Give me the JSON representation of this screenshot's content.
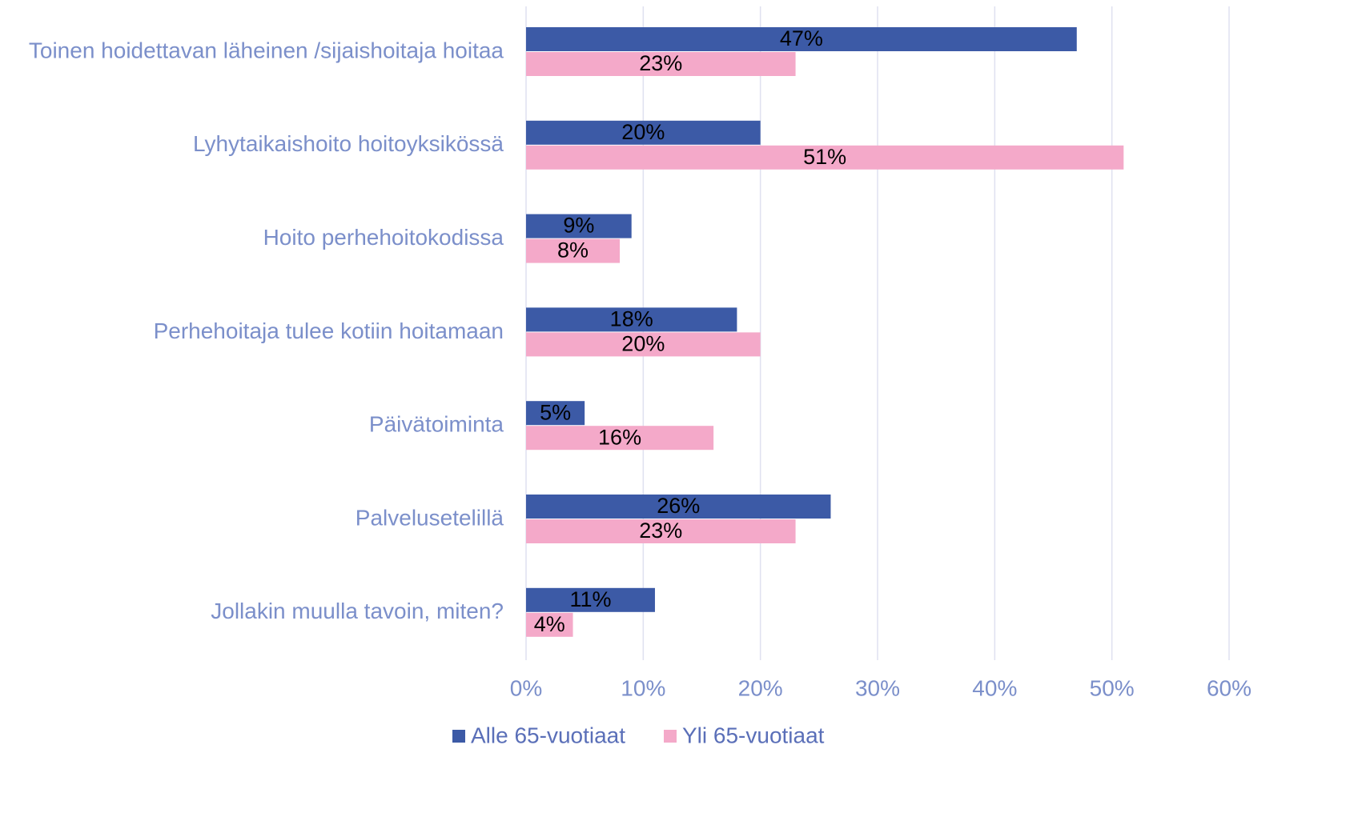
{
  "chart_data": {
    "type": "bar",
    "categories": [
      "Toinen hoidettavan läheinen /sijaishoitaja hoitaa",
      "Lyhytaikaishoito hoitoyksikössä",
      "Hoito perhehoitokodissa",
      "Perhehoitaja tulee kotiin hoitamaan",
      "Päivätoiminta",
      "Palvelusetelillä",
      "Jollakin muulla tavoin, miten?"
    ],
    "series": [
      {
        "name": "Alle 65-vuotiaat",
        "color": "#3c5aa6",
        "values": [
          47,
          20,
          9,
          18,
          5,
          26,
          11
        ],
        "value_labels": [
          "47%",
          "20%",
          "9%",
          "18%",
          "5%",
          "26%",
          "11%"
        ]
      },
      {
        "name": "Yli 65-vuotiaat",
        "color": "#f4a9c9",
        "values": [
          23,
          51,
          8,
          20,
          16,
          23,
          4
        ],
        "value_labels": [
          "23%",
          "51%",
          "8%",
          "20%",
          "16%",
          "23%",
          "4%"
        ]
      }
    ],
    "xlim": [
      0,
      60
    ],
    "xticks": [
      {
        "value": 0,
        "label": "0%"
      },
      {
        "value": 10,
        "label": "10%"
      },
      {
        "value": 20,
        "label": "20%"
      },
      {
        "value": 30,
        "label": "30%"
      },
      {
        "value": 40,
        "label": "40%"
      },
      {
        "value": 50,
        "label": "50%"
      },
      {
        "value": 60,
        "label": "60%"
      }
    ],
    "grid": true,
    "legend": "bottom"
  }
}
